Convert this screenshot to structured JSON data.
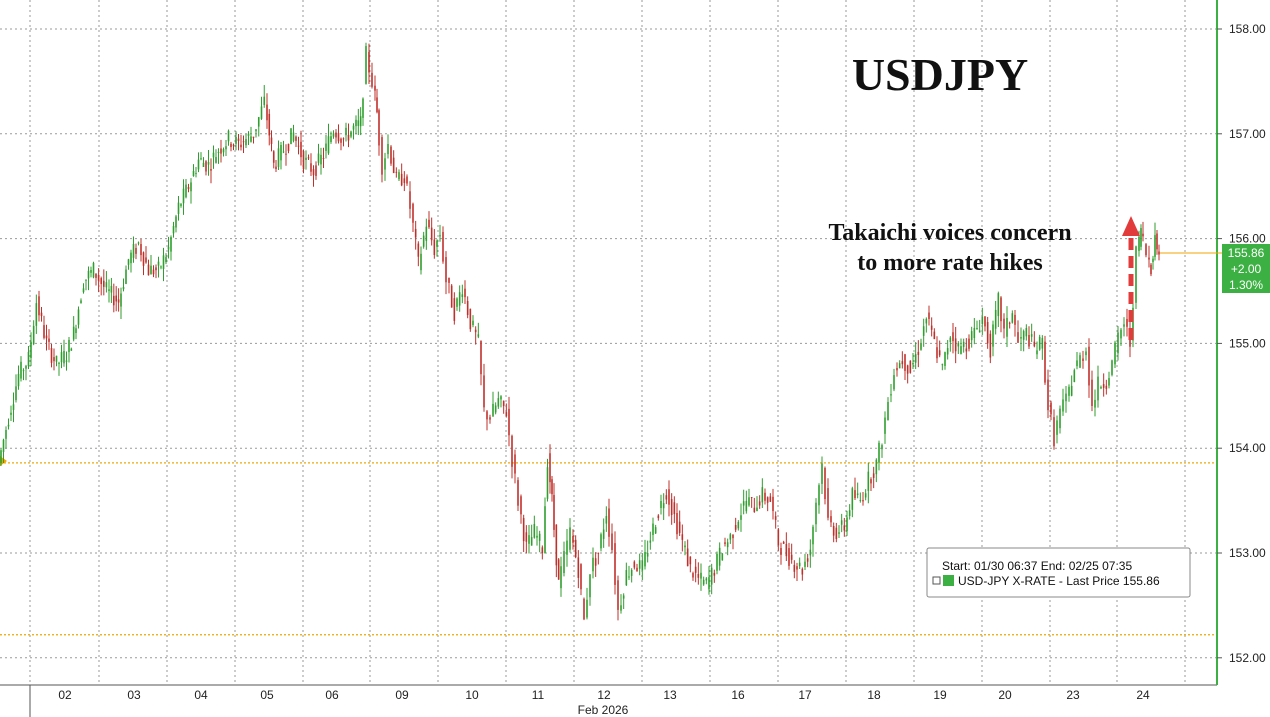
{
  "chart_data": {
    "type": "line",
    "title": "USDJPY",
    "annotation": [
      "Takaichi voices concern",
      "to more rate hikes"
    ],
    "ylim": [
      151.95,
      158.2
    ],
    "y_ticks": [
      "158.00",
      "157.00",
      "156.00",
      "155.00",
      "154.00",
      "153.00",
      "152.00"
    ],
    "x_tick_labels": [
      "02",
      "03",
      "04",
      "05",
      "06",
      "09",
      "10",
      "11",
      "12",
      "13",
      "16",
      "17",
      "18",
      "19",
      "20",
      "23",
      "24"
    ],
    "x_axis_sublabel": "Feb 2026",
    "reference_lines": [
      153.86,
      152.22
    ],
    "last_price": {
      "value": "155.86",
      "change": "+2.00",
      "change_pct": "1.30%"
    },
    "legend": {
      "range": "Start: 01/30 06:37 End: 02/25 07:35",
      "series_label": "USD-JPY X-RATE - Last Price 155.86"
    },
    "colors": {
      "up": "#2e9e2e",
      "down": "#c0302b",
      "price_tag": "#3cb043",
      "reference": "#f0a500",
      "arrow": "#e23b3b",
      "right_axis": "#3cb043"
    },
    "series": [
      {
        "name": "USD-JPY X-RATE",
        "points": [
          [
            0,
            153.86
          ],
          [
            10,
            154.3
          ],
          [
            20,
            154.7
          ],
          [
            30,
            154.85
          ],
          [
            38,
            155.4
          ],
          [
            48,
            155.0
          ],
          [
            58,
            154.8
          ],
          [
            68,
            154.9
          ],
          [
            75,
            155.1
          ],
          [
            85,
            155.6
          ],
          [
            95,
            155.7
          ],
          [
            108,
            155.5
          ],
          [
            120,
            155.4
          ],
          [
            130,
            155.8
          ],
          [
            140,
            155.95
          ],
          [
            150,
            155.7
          ],
          [
            160,
            155.7
          ],
          [
            170,
            155.9
          ],
          [
            180,
            156.3
          ],
          [
            190,
            156.5
          ],
          [
            200,
            156.75
          ],
          [
            210,
            156.7
          ],
          [
            220,
            156.85
          ],
          [
            230,
            156.95
          ],
          [
            240,
            156.9
          ],
          [
            255,
            157.0
          ],
          [
            266,
            157.3
          ],
          [
            275,
            156.7
          ],
          [
            285,
            156.85
          ],
          [
            295,
            157.0
          ],
          [
            305,
            156.75
          ],
          [
            315,
            156.65
          ],
          [
            325,
            156.8
          ],
          [
            335,
            157.05
          ],
          [
            345,
            156.95
          ],
          [
            355,
            157.05
          ],
          [
            362,
            157.1
          ],
          [
            368,
            157.75
          ],
          [
            374,
            157.5
          ],
          [
            378,
            157.2
          ],
          [
            384,
            156.7
          ],
          [
            390,
            156.9
          ],
          [
            398,
            156.55
          ],
          [
            406,
            156.6
          ],
          [
            412,
            156.3
          ],
          [
            420,
            155.75
          ],
          [
            428,
            156.15
          ],
          [
            436,
            155.9
          ],
          [
            442,
            156.05
          ],
          [
            448,
            155.6
          ],
          [
            456,
            155.3
          ],
          [
            464,
            155.55
          ],
          [
            472,
            155.2
          ],
          [
            480,
            155.0
          ],
          [
            486,
            154.35
          ],
          [
            492,
            154.3
          ],
          [
            500,
            154.45
          ],
          [
            508,
            154.35
          ],
          [
            514,
            153.9
          ],
          [
            520,
            153.5
          ],
          [
            528,
            153.05
          ],
          [
            536,
            153.2
          ],
          [
            544,
            153.05
          ],
          [
            549,
            153.9
          ],
          [
            553,
            153.5
          ],
          [
            560,
            152.7
          ],
          [
            566,
            152.95
          ],
          [
            572,
            153.2
          ],
          [
            580,
            152.85
          ],
          [
            586,
            152.35
          ],
          [
            592,
            152.85
          ],
          [
            600,
            153.0
          ],
          [
            608,
            153.4
          ],
          [
            614,
            153.05
          ],
          [
            620,
            152.45
          ],
          [
            628,
            152.8
          ],
          [
            636,
            152.9
          ],
          [
            644,
            152.85
          ],
          [
            652,
            153.15
          ],
          [
            660,
            153.4
          ],
          [
            668,
            153.6
          ],
          [
            676,
            153.35
          ],
          [
            684,
            153.1
          ],
          [
            692,
            152.85
          ],
          [
            700,
            152.75
          ],
          [
            708,
            152.7
          ],
          [
            716,
            152.85
          ],
          [
            724,
            153.05
          ],
          [
            732,
            153.15
          ],
          [
            740,
            153.35
          ],
          [
            748,
            153.5
          ],
          [
            756,
            153.45
          ],
          [
            764,
            153.55
          ],
          [
            772,
            153.5
          ],
          [
            780,
            153.1
          ],
          [
            788,
            153.0
          ],
          [
            796,
            152.9
          ],
          [
            804,
            152.85
          ],
          [
            812,
            153.05
          ],
          [
            818,
            153.5
          ],
          [
            824,
            153.85
          ],
          [
            830,
            153.3
          ],
          [
            838,
            153.2
          ],
          [
            846,
            153.25
          ],
          [
            854,
            153.55
          ],
          [
            862,
            153.5
          ],
          [
            870,
            153.7
          ],
          [
            878,
            153.85
          ],
          [
            884,
            154.1
          ],
          [
            890,
            154.45
          ],
          [
            896,
            154.75
          ],
          [
            904,
            154.85
          ],
          [
            912,
            154.75
          ],
          [
            920,
            154.95
          ],
          [
            928,
            155.25
          ],
          [
            936,
            155.0
          ],
          [
            944,
            154.75
          ],
          [
            952,
            155.1
          ],
          [
            960,
            154.95
          ],
          [
            968,
            155.0
          ],
          [
            976,
            155.1
          ],
          [
            984,
            155.25
          ],
          [
            992,
            154.95
          ],
          [
            1000,
            155.4
          ],
          [
            1006,
            155.1
          ],
          [
            1014,
            155.3
          ],
          [
            1020,
            155.0
          ],
          [
            1028,
            155.1
          ],
          [
            1036,
            154.95
          ],
          [
            1044,
            155.0
          ],
          [
            1050,
            154.4
          ],
          [
            1056,
            154.1
          ],
          [
            1062,
            154.35
          ],
          [
            1068,
            154.45
          ],
          [
            1076,
            154.75
          ],
          [
            1082,
            154.85
          ],
          [
            1088,
            154.95
          ],
          [
            1094,
            154.4
          ],
          [
            1100,
            154.6
          ],
          [
            1108,
            154.65
          ],
          [
            1114,
            154.8
          ],
          [
            1120,
            155.05
          ],
          [
            1126,
            155.2
          ],
          [
            1132,
            155.0
          ],
          [
            1138,
            155.85
          ],
          [
            1142,
            156.1
          ],
          [
            1148,
            155.85
          ],
          [
            1152,
            155.75
          ],
          [
            1156,
            156.0
          ],
          [
            1160,
            155.86
          ]
        ]
      }
    ]
  }
}
